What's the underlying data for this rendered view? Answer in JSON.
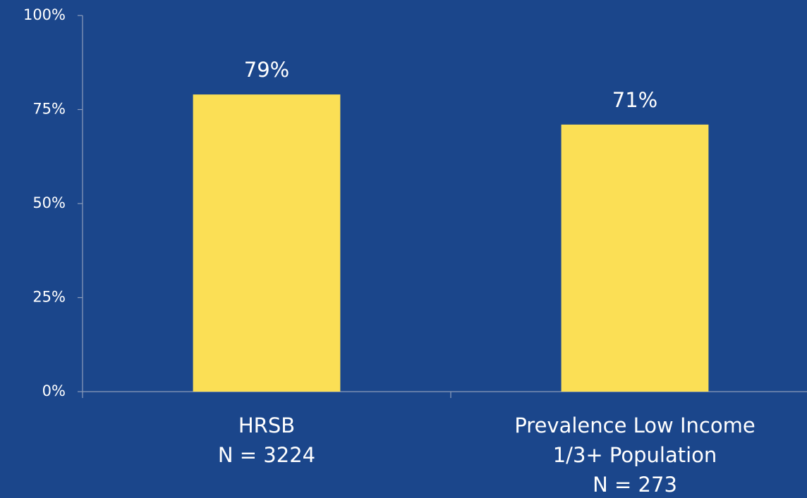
{
  "chart_data": {
    "type": "bar",
    "categories": [
      [
        "HRSB",
        "N = 3224"
      ],
      [
        "Prevalence Low Income",
        "1/3+ Population",
        "N = 273"
      ]
    ],
    "values": [
      79,
      71
    ],
    "value_labels": [
      "79%",
      "71%"
    ],
    "color": "#fbdf55",
    "ylim": [
      0,
      100
    ],
    "yticks": [
      {
        "value": 0,
        "label": "0%"
      },
      {
        "value": 25,
        "label": "25%"
      },
      {
        "value": 50,
        "label": "50%"
      },
      {
        "value": 75,
        "label": "75%"
      },
      {
        "value": 100,
        "label": "100%"
      }
    ],
    "grid": false
  }
}
